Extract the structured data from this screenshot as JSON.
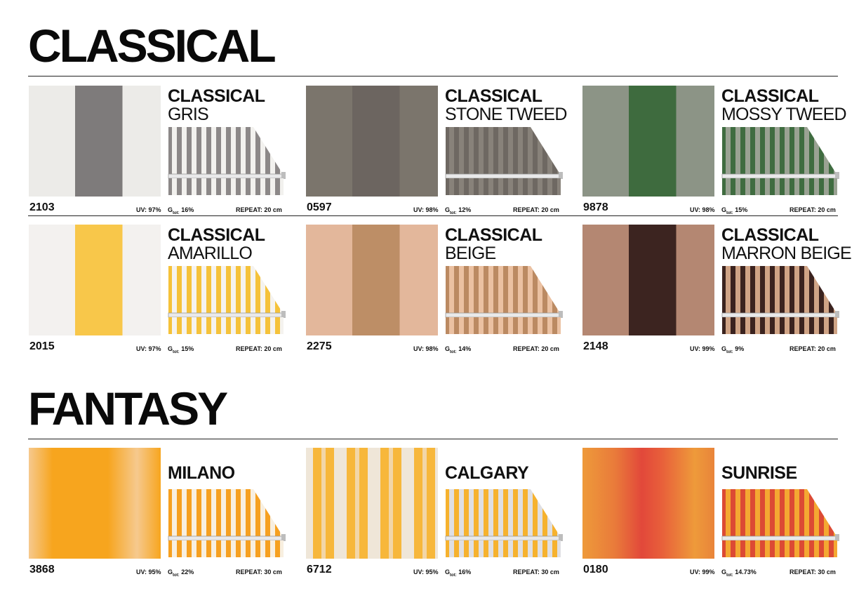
{
  "sections": [
    {
      "title": "CLASSICAL",
      "cards": [
        {
          "series": "CLASSICAL",
          "name": "GRIS",
          "code": "2103",
          "uv": "UV: 97%",
          "g": "16%",
          "repeat": "REPEAT: 20 cm",
          "colors": {
            "light": "#ecebe8",
            "stripe": "#7e7b7b",
            "awn_light": "#f2f1ee",
            "awn_stripe": "#8c8888"
          }
        },
        {
          "series": "CLASSICAL",
          "name": "STONE TWEED",
          "code": "0597",
          "uv": "UV: 98%",
          "g": "12%",
          "repeat": "REPEAT: 20 cm",
          "colors": {
            "light": "#7b756c",
            "stripe": "#6c6560",
            "awn_light": "#88827a",
            "awn_stripe": "#6e6862"
          }
        },
        {
          "series": "CLASSICAL",
          "name": "MOSSY TWEED",
          "code": "9878",
          "uv": "UV: 98%",
          "g": "15%",
          "repeat": "REPEAT: 20 cm",
          "colors": {
            "light": "#8c9486",
            "stripe": "#3e6b3e",
            "awn_light": "#9aa293",
            "awn_stripe": "#3f6c40"
          }
        },
        {
          "series": "CLASSICAL",
          "name": "AMARILLO",
          "code": "2015",
          "uv": "UV: 97%",
          "g": "15%",
          "repeat": "REPEAT: 20 cm",
          "colors": {
            "light": "#f3f1ef",
            "stripe": "#f8c74a",
            "awn_light": "#f5f3ef",
            "awn_stripe": "#f5c23a"
          }
        },
        {
          "series": "CLASSICAL",
          "name": "BEIGE",
          "code": "2275",
          "uv": "UV: 98%",
          "g": "14%",
          "repeat": "REPEAT: 20 cm",
          "colors": {
            "light": "#e3b79b",
            "stripe": "#bd8e66",
            "awn_light": "#ebc1a2",
            "awn_stripe": "#bb8a62"
          }
        },
        {
          "series": "CLASSICAL",
          "name": "MARRON BEIGE",
          "code": "2148",
          "uv": "UV: 99%",
          "g": "9%",
          "repeat": "REPEAT: 20 cm",
          "colors": {
            "light": "#b48772",
            "stripe": "#3c2420",
            "awn_light": "#d0a486",
            "awn_stripe": "#3b231f"
          }
        }
      ]
    },
    {
      "title": "FANTASY",
      "cards": [
        {
          "series": "",
          "name": "MILANO",
          "code": "3868",
          "uv": "UV: 95%",
          "g": "22%",
          "repeat": "REPEAT: 30 cm",
          "colors": {
            "light": "#f6c98e",
            "stripe": "#f7a51e",
            "awn_light": "#f8efe0",
            "awn_stripe": "#f6a020"
          }
        },
        {
          "series": "",
          "name": "CALGARY",
          "code": "6712",
          "uv": "UV: 95%",
          "g": "16%",
          "repeat": "REPEAT: 30 cm",
          "colors": {
            "light": "#efe6d8",
            "stripe": "#f7b73b",
            "awn_light": "#dfdfe3",
            "awn_stripe": "#f6b22e"
          }
        },
        {
          "series": "",
          "name": "SUNRISE",
          "code": "0180",
          "uv": "UV: 99%",
          "g": "14.73%",
          "repeat": "REPEAT: 30 cm",
          "colors": {
            "light": "#ee9a3a",
            "stripe": "#e2483a",
            "awn_light": "#f4a832",
            "awn_stripe": "#dc4a34"
          }
        }
      ]
    }
  ],
  "g_label": "G",
  "g_sub": "tot:"
}
